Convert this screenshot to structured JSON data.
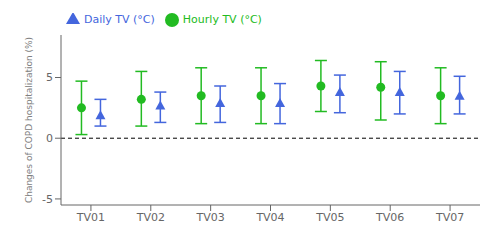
{
  "chart_data": {
    "type": "scatter",
    "categories": [
      "TV01",
      "TV02",
      "TV03",
      "TV04",
      "TV05",
      "TV06",
      "TV07"
    ],
    "series": [
      {
        "name": "Hourly TV (°C)",
        "color": "#22bb22",
        "marker": "circle",
        "values": [
          2.5,
          3.2,
          3.5,
          3.5,
          4.3,
          4.2,
          3.5
        ],
        "error_lower": [
          2.2,
          2.2,
          2.3,
          2.3,
          2.1,
          2.7,
          2.3
        ],
        "error_upper": [
          2.2,
          2.3,
          2.3,
          2.3,
          2.1,
          2.1,
          2.3
        ]
      },
      {
        "name": "Daily TV (°C)",
        "color": "#4466dd",
        "marker": "triangle",
        "values": [
          1.9,
          2.7,
          2.9,
          2.9,
          3.8,
          3.8,
          3.5
        ],
        "error_lower": [
          0.9,
          1.4,
          1.6,
          1.7,
          1.7,
          1.8,
          1.5
        ],
        "error_upper": [
          1.3,
          1.1,
          1.4,
          1.6,
          1.4,
          1.7,
          1.6
        ]
      }
    ],
    "ylabel": "Changes of COPD hospitalization (%)",
    "ylim": [
      -5.5,
      8.5
    ],
    "yticks": [
      -5,
      0,
      5
    ],
    "hline": 0,
    "grid": false,
    "legend": "upper left"
  }
}
